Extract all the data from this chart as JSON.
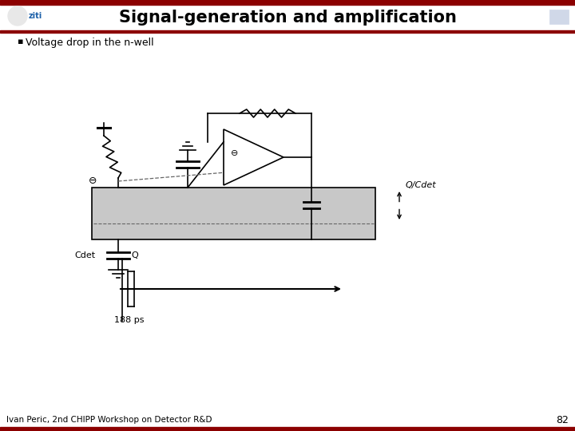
{
  "title": "Signal-generation and amplification",
  "bullet_text": "Voltage drop in the n-well",
  "label_cdet": "Cdet",
  "label_Q": "Q",
  "label_QCdet": "Q/Cdet",
  "label_188ps": "188 ps",
  "footer_text": "Ivan Peric, 2nd CHIPP Workshop on Detector R&D",
  "slide_number": "82",
  "bg_color": "#ffffff",
  "circuit_color": "#000000",
  "dashed_color": "#666666",
  "nwell_fill": "#c8c8c8",
  "header_bar_color": "#8B0000"
}
